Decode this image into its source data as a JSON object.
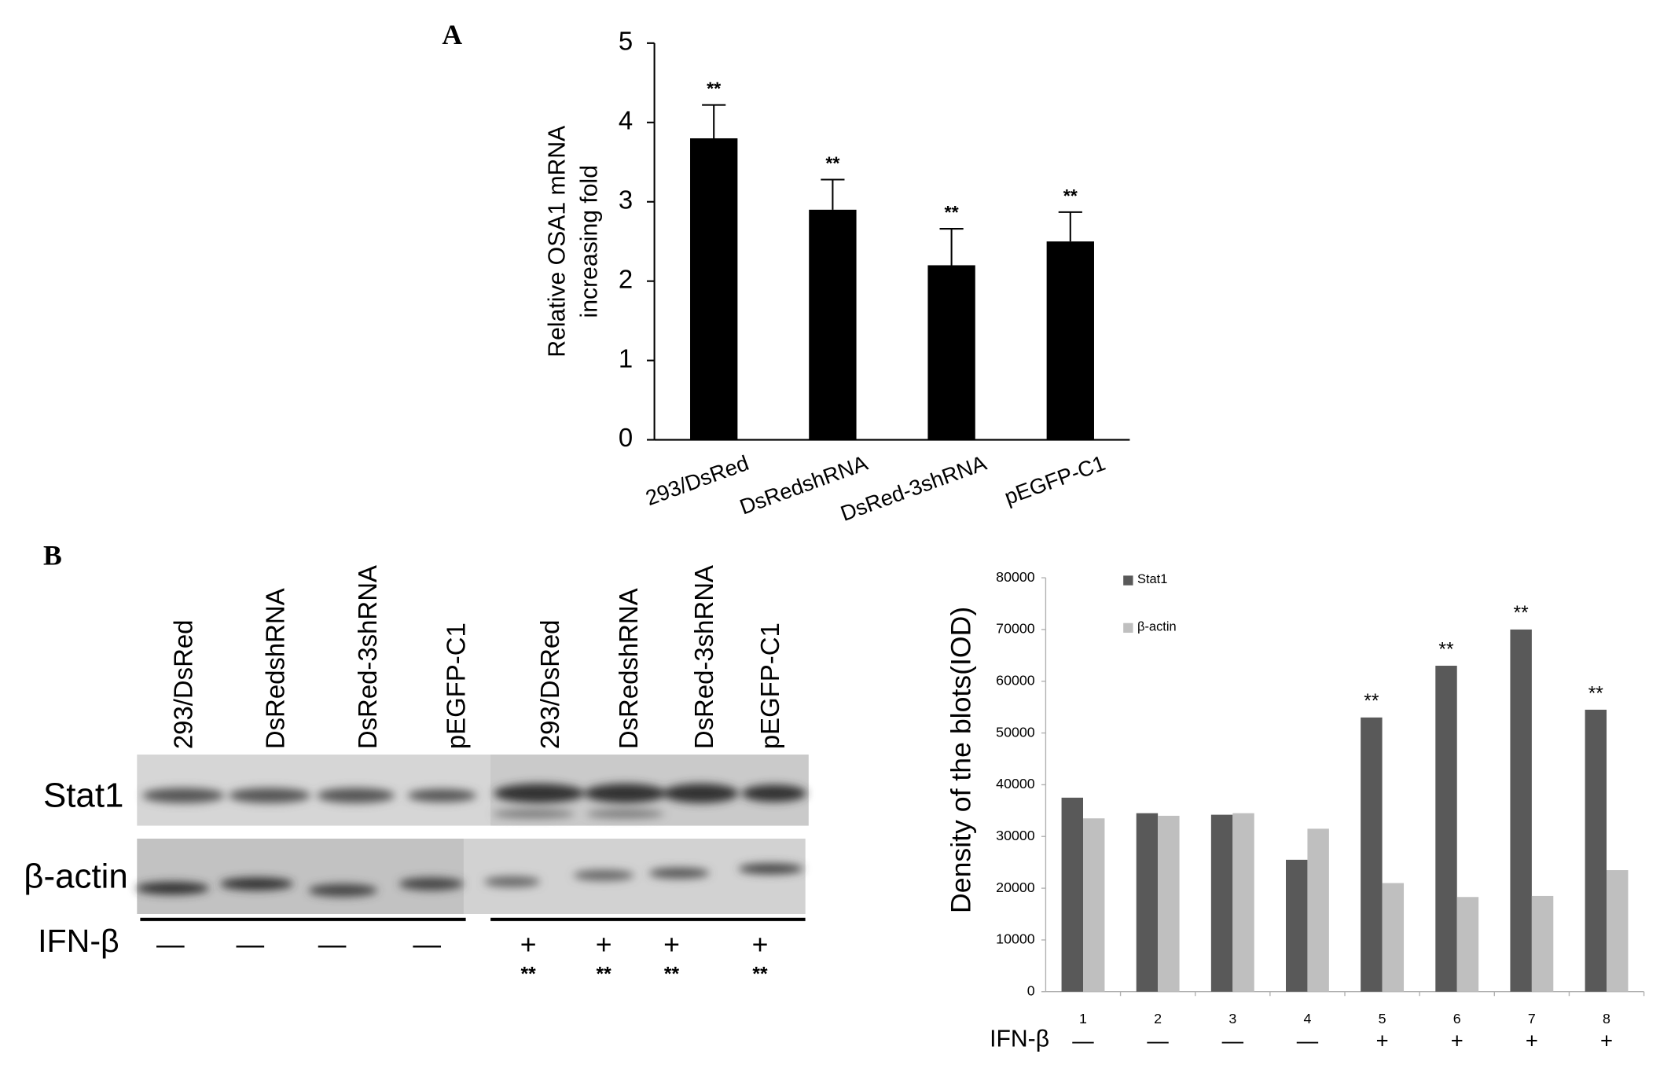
{
  "panel_labels": [
    "A",
    "B"
  ],
  "chart_data": [
    {
      "type": "bar",
      "ylabel": [
        "Relative OSA1 mRNA",
        "increasing fold"
      ],
      "categories": [
        "293/DsRed",
        "DsRedshRNA",
        "DsRed-3shRNA",
        "pEGFP-C1"
      ],
      "values": [
        3.8,
        2.9,
        2.2,
        2.5
      ],
      "errors": [
        0.42,
        0.38,
        0.46,
        0.37
      ],
      "annotations": [
        "**",
        "**",
        "**",
        "**"
      ],
      "color": "#000000",
      "ylim": [
        0,
        5
      ],
      "yticks": [
        0,
        1,
        2,
        3,
        4,
        5
      ],
      "grid": false
    },
    {
      "type": "grouped-bar",
      "ylabel": "Density of the blots(IOD)",
      "categories": [
        "1",
        "2",
        "3",
        "4",
        "5",
        "6",
        "7",
        "8"
      ],
      "series": [
        {
          "name": "Stat1",
          "color": "#595959",
          "values": [
            37500,
            34500,
            34200,
            25500,
            53000,
            63000,
            70000,
            54500
          ]
        },
        {
          "name": "β-actin",
          "color": "#bfbfbf",
          "values": [
            33500,
            34000,
            34500,
            31500,
            21000,
            18300,
            18500,
            23500
          ]
        }
      ],
      "annotations": [
        null,
        null,
        null,
        null,
        "**",
        "**",
        "**",
        "**"
      ],
      "treatment_label": "IFN-β",
      "treatment": [
        "—",
        "—",
        "—",
        "—",
        "+",
        "+",
        "+",
        "+"
      ],
      "ylim": [
        0,
        80000
      ],
      "yticks": [
        0,
        10000,
        20000,
        30000,
        40000,
        50000,
        60000,
        70000,
        80000
      ],
      "grid": false,
      "legend": "top-left"
    }
  ],
  "blot": {
    "lanes": [
      "293/DsRed",
      "DsRedshRNA",
      "DsRed-3shRNA",
      "pEGFP-C1",
      "293/DsRed",
      "DsRedshRNA",
      "DsRed-3shRNA",
      "pEGFP-C1"
    ],
    "rows": [
      "Stat1",
      "β-actin"
    ],
    "treatment_label": "IFN-β",
    "treatment": [
      "—",
      "—",
      "—",
      "—",
      "+",
      "+",
      "+",
      "+"
    ],
    "annotations": [
      null,
      null,
      null,
      null,
      "**",
      "**",
      "**",
      "**"
    ]
  }
}
